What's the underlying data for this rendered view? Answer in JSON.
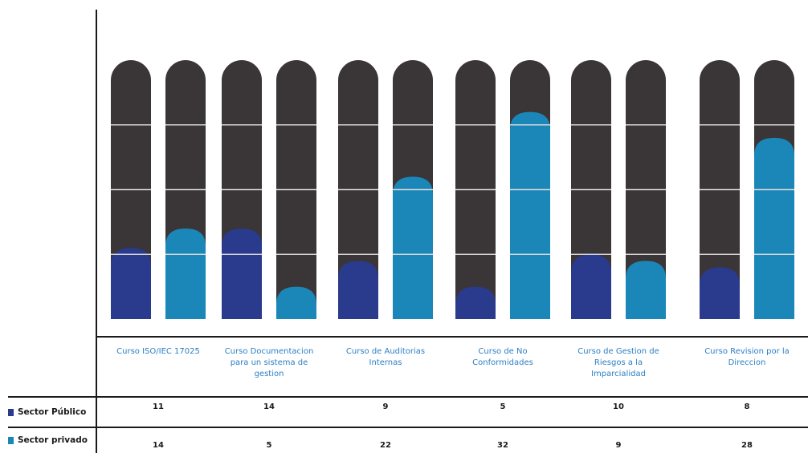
{
  "chart_data": {
    "type": "bar",
    "categories": [
      "Curso ISO/IEC 17025",
      "Curso Documentacion para un sistema de gestion",
      "Curso de Auditorias Internas",
      "Curso de No Conformidades",
      "Curso de Gestion de Riesgos a la Imparcialidad",
      "Curso Revision por la Direccion"
    ],
    "series": [
      {
        "name": "Sector Público",
        "values": [
          11,
          14,
          9,
          5,
          10,
          8
        ],
        "color": "#2a3a8c"
      },
      {
        "name": "Sector privado",
        "values": [
          14,
          5,
          22,
          32,
          9,
          28
        ],
        "color": "#1a87b8"
      }
    ],
    "ylim": [
      0,
      40
    ],
    "tube_color": "#3a3536",
    "grid_color": "#d8d8d8",
    "title": "",
    "xlabel": "",
    "ylabel": ""
  }
}
